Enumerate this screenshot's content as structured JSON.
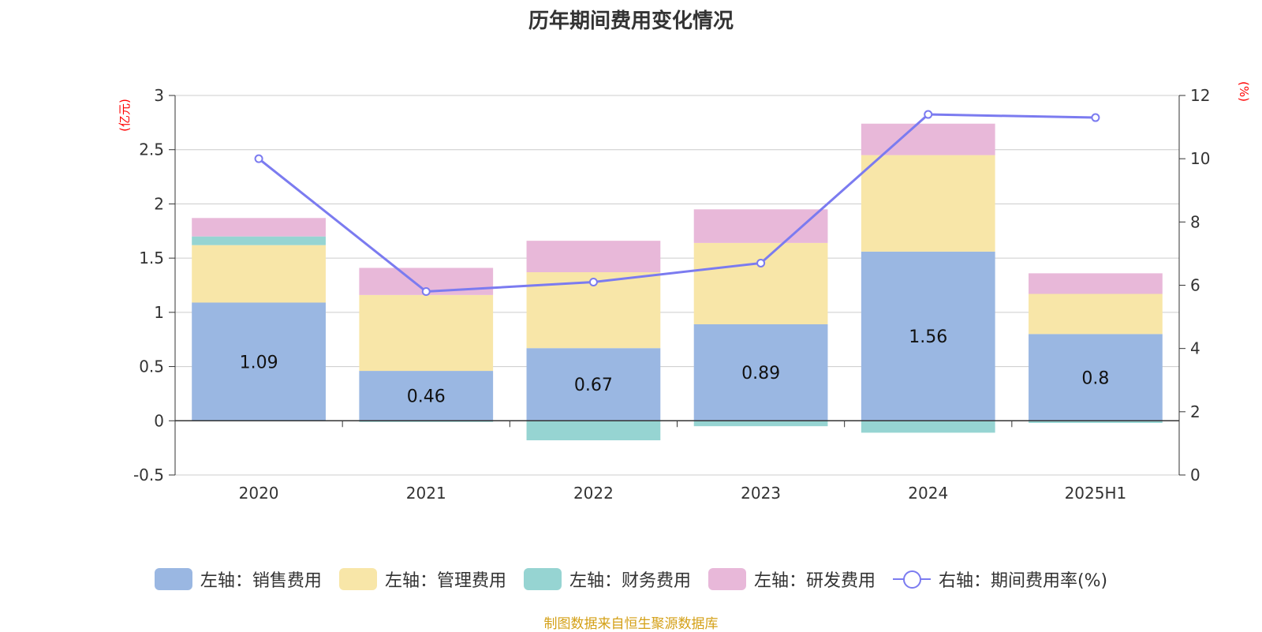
{
  "chart_data": {
    "type": "bar",
    "title": "历年期间费用变化情况",
    "categories": [
      "2020",
      "2021",
      "2022",
      "2023",
      "2024",
      "2025H1"
    ],
    "left_axis": {
      "unit": "(亿元)",
      "ylim": [
        -0.5,
        3
      ],
      "ticks": [
        "-0.5",
        "0",
        "0.5",
        "1",
        "1.5",
        "2",
        "2.5",
        "3"
      ]
    },
    "right_axis": {
      "unit": "(%)",
      "ylim": [
        0,
        12
      ],
      "ticks": [
        "0",
        "2",
        "4",
        "6",
        "8",
        "10",
        "12"
      ]
    },
    "stacked": true,
    "grid": true,
    "legend_position": "bottom",
    "series": [
      {
        "name": "左轴：销售费用",
        "axis": "left",
        "type": "bar",
        "color": "#9ab7e2",
        "values": [
          1.09,
          0.46,
          0.67,
          0.89,
          1.56,
          0.8
        ],
        "labels": [
          "1.09",
          "0.46",
          "0.67",
          "0.89",
          "1.56",
          "0.8"
        ]
      },
      {
        "name": "左轴：管理费用",
        "axis": "left",
        "type": "bar",
        "color": "#f8e6a8",
        "values": [
          0.53,
          0.7,
          0.7,
          0.75,
          0.89,
          0.37
        ]
      },
      {
        "name": "左轴：财务费用",
        "axis": "left",
        "type": "bar",
        "color": "#96d4d2",
        "values": [
          0.08,
          -0.01,
          -0.18,
          -0.05,
          -0.11,
          -0.02
        ]
      },
      {
        "name": "左轴：研发费用",
        "axis": "left",
        "type": "bar",
        "color": "#e8b8d9",
        "values": [
          0.17,
          0.25,
          0.29,
          0.31,
          0.29,
          0.19
        ]
      },
      {
        "name": "右轴：期间费用率(%)",
        "axis": "right",
        "type": "line",
        "color": "#7b7bf0",
        "values": [
          10.0,
          5.8,
          6.1,
          6.7,
          11.4,
          11.3
        ]
      }
    ],
    "source": "制图数据来自恒生聚源数据库"
  }
}
